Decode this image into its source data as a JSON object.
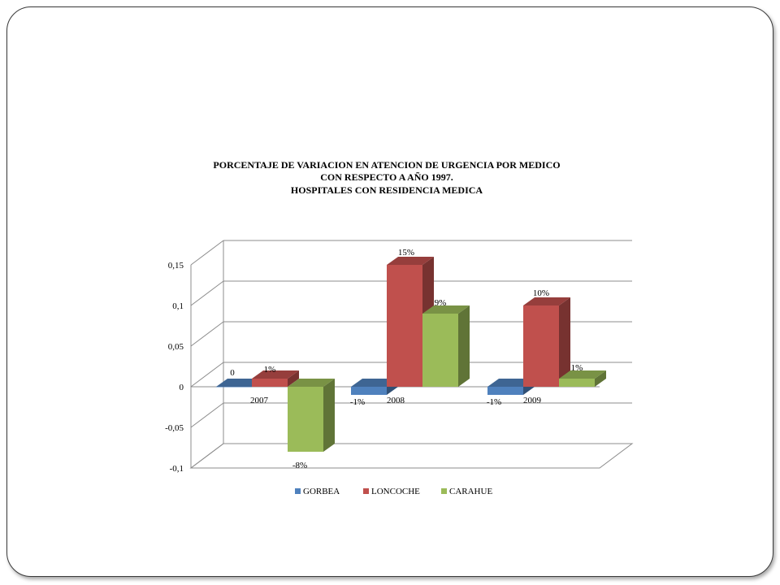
{
  "chart_data": {
    "type": "bar",
    "title_lines": [
      "PORCENTAJE  DE  VARIACION  EN ATENCION DE URGENCIA   POR MEDICO",
      "CON RESPECTO A AÑO 1997.",
      "HOSPITALES CON RESIDENCIA   MEDICA"
    ],
    "categories": [
      "2007",
      "2008",
      "2009"
    ],
    "series": [
      {
        "name": "GORBEA",
        "color": "#4f81bd",
        "values": [
          0,
          -0.01,
          -0.01
        ],
        "labels": [
          "0",
          "-1%",
          "-1%"
        ]
      },
      {
        "name": "LONCOCHE",
        "color": "#c0504d",
        "values": [
          0.01,
          0.15,
          0.1
        ],
        "labels": [
          "1%",
          "15%",
          "10%"
        ]
      },
      {
        "name": "CARAHUE",
        "color": "#9bbb59",
        "values": [
          -0.08,
          0.09,
          0.01
        ],
        "labels": [
          "-8%",
          "9%",
          "1%"
        ]
      }
    ],
    "ylim": [
      -0.1,
      0.15
    ],
    "yticks": [
      -0.1,
      -0.05,
      0,
      0.05,
      0.1,
      0.15
    ],
    "ytick_labels": [
      "-0,1",
      "-0,05",
      "0",
      "0,05",
      "0,1",
      "0,15"
    ],
    "grid": true,
    "legend_position": "bottom"
  }
}
